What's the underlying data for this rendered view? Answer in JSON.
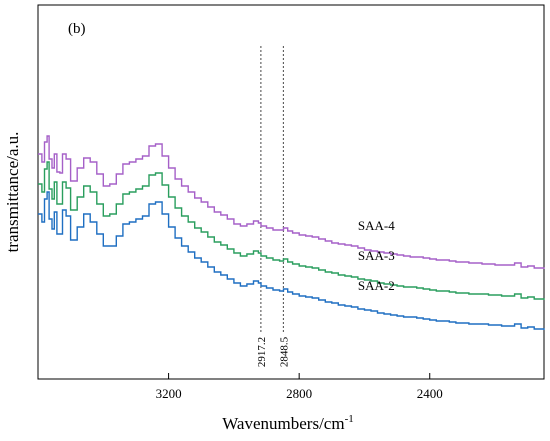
{
  "chart_data": {
    "type": "line",
    "panel_label": "(b)",
    "xlabel": "Wavenumbers/cm",
    "xlabel_exponent": "-1",
    "ylabel": "transmittance/a.u.",
    "xlim": [
      3600,
      2050
    ],
    "x_ticks": [
      3200,
      2800,
      2400
    ],
    "x_tick_labels": [
      "3200",
      "2800",
      "2400"
    ],
    "y_ticks": false,
    "grid": false,
    "legend": "labels placed above each curve",
    "annotations": [
      {
        "x": 2917.2,
        "label": "2917.2"
      },
      {
        "x": 2848.5,
        "label": "2848.5"
      }
    ],
    "series": [
      {
        "name": "SAA-4",
        "color": "#a560c8",
        "offset": 60,
        "points": [
          [
            3600,
            70
          ],
          [
            3588,
            62
          ],
          [
            3580,
            82
          ],
          [
            3572,
            88
          ],
          [
            3566,
            65
          ],
          [
            3557,
            56
          ],
          [
            3550,
            70
          ],
          [
            3542,
            52
          ],
          [
            3533,
            51
          ],
          [
            3525,
            70
          ],
          [
            3514,
            65
          ],
          [
            3500,
            43
          ],
          [
            3480,
            56
          ],
          [
            3460,
            66
          ],
          [
            3440,
            62
          ],
          [
            3420,
            50
          ],
          [
            3400,
            38
          ],
          [
            3380,
            40
          ],
          [
            3360,
            50
          ],
          [
            3340,
            60
          ],
          [
            3320,
            62
          ],
          [
            3300,
            65
          ],
          [
            3280,
            68
          ],
          [
            3260,
            78
          ],
          [
            3240,
            80
          ],
          [
            3220,
            68
          ],
          [
            3200,
            56
          ],
          [
            3180,
            45
          ],
          [
            3160,
            38
          ],
          [
            3140,
            32
          ],
          [
            3120,
            26
          ],
          [
            3100,
            22
          ],
          [
            3080,
            17
          ],
          [
            3060,
            12
          ],
          [
            3040,
            9
          ],
          [
            3020,
            5
          ],
          [
            3000,
            0
          ],
          [
            2980,
            -2
          ],
          [
            2960,
            0
          ],
          [
            2940,
            3
          ],
          [
            2925,
            1
          ],
          [
            2917,
            -2
          ],
          [
            2900,
            -4
          ],
          [
            2880,
            -6
          ],
          [
            2860,
            -6
          ],
          [
            2848,
            -4
          ],
          [
            2835,
            -7
          ],
          [
            2820,
            -9
          ],
          [
            2800,
            -11
          ],
          [
            2780,
            -12
          ],
          [
            2760,
            -13
          ],
          [
            2740,
            -15
          ],
          [
            2720,
            -17
          ],
          [
            2700,
            -19
          ],
          [
            2680,
            -20
          ],
          [
            2660,
            -21
          ],
          [
            2640,
            -22
          ],
          [
            2620,
            -24
          ],
          [
            2600,
            -26
          ],
          [
            2580,
            -27
          ],
          [
            2560,
            -28
          ],
          [
            2540,
            -29
          ],
          [
            2520,
            -30
          ],
          [
            2500,
            -31
          ],
          [
            2480,
            -32
          ],
          [
            2460,
            -33
          ],
          [
            2440,
            -33
          ],
          [
            2420,
            -34
          ],
          [
            2400,
            -35
          ],
          [
            2380,
            -36
          ],
          [
            2360,
            -36
          ],
          [
            2340,
            -37
          ],
          [
            2320,
            -38
          ],
          [
            2300,
            -38
          ],
          [
            2280,
            -39
          ],
          [
            2260,
            -39
          ],
          [
            2240,
            -40
          ],
          [
            2220,
            -40
          ],
          [
            2200,
            -41
          ],
          [
            2180,
            -41
          ],
          [
            2160,
            -41
          ],
          [
            2140,
            -39
          ],
          [
            2120,
            -43
          ],
          [
            2100,
            -42
          ],
          [
            2080,
            -44
          ],
          [
            2050,
            -45
          ]
        ]
      },
      {
        "name": "SAA-3",
        "color": "#2a9e5e",
        "offset": 30,
        "points": [
          [
            3600,
            70
          ],
          [
            3588,
            62
          ],
          [
            3580,
            85
          ],
          [
            3572,
            92
          ],
          [
            3566,
            65
          ],
          [
            3557,
            55
          ],
          [
            3550,
            72
          ],
          [
            3542,
            50
          ],
          [
            3533,
            50
          ],
          [
            3525,
            72
          ],
          [
            3514,
            66
          ],
          [
            3500,
            44
          ],
          [
            3480,
            57
          ],
          [
            3460,
            68
          ],
          [
            3440,
            62
          ],
          [
            3420,
            50
          ],
          [
            3400,
            38
          ],
          [
            3380,
            40
          ],
          [
            3360,
            50
          ],
          [
            3340,
            60
          ],
          [
            3320,
            62
          ],
          [
            3300,
            65
          ],
          [
            3280,
            68
          ],
          [
            3260,
            79
          ],
          [
            3240,
            81
          ],
          [
            3220,
            69
          ],
          [
            3200,
            57
          ],
          [
            3180,
            46
          ],
          [
            3160,
            38
          ],
          [
            3140,
            32
          ],
          [
            3120,
            26
          ],
          [
            3100,
            22
          ],
          [
            3080,
            17
          ],
          [
            3060,
            12
          ],
          [
            3040,
            9
          ],
          [
            3020,
            5
          ],
          [
            3000,
            1
          ],
          [
            2980,
            -2
          ],
          [
            2960,
            0
          ],
          [
            2940,
            3
          ],
          [
            2925,
            1
          ],
          [
            2917,
            -2
          ],
          [
            2900,
            -4
          ],
          [
            2880,
            -6
          ],
          [
            2860,
            -7
          ],
          [
            2848,
            -5
          ],
          [
            2835,
            -8
          ],
          [
            2820,
            -10
          ],
          [
            2800,
            -12
          ],
          [
            2780,
            -13
          ],
          [
            2760,
            -14
          ],
          [
            2740,
            -16
          ],
          [
            2720,
            -18
          ],
          [
            2700,
            -19
          ],
          [
            2680,
            -21
          ],
          [
            2660,
            -22
          ],
          [
            2640,
            -23
          ],
          [
            2620,
            -25
          ],
          [
            2600,
            -26
          ],
          [
            2580,
            -27
          ],
          [
            2560,
            -29
          ],
          [
            2540,
            -30
          ],
          [
            2520,
            -31
          ],
          [
            2500,
            -32
          ],
          [
            2480,
            -33
          ],
          [
            2460,
            -33
          ],
          [
            2440,
            -34
          ],
          [
            2420,
            -35
          ],
          [
            2400,
            -36
          ],
          [
            2380,
            -37
          ],
          [
            2360,
            -37
          ],
          [
            2340,
            -38
          ],
          [
            2320,
            -39
          ],
          [
            2300,
            -39
          ],
          [
            2280,
            -40
          ],
          [
            2260,
            -40
          ],
          [
            2240,
            -40
          ],
          [
            2220,
            -41
          ],
          [
            2200,
            -41
          ],
          [
            2180,
            -42
          ],
          [
            2160,
            -42
          ],
          [
            2140,
            -40
          ],
          [
            2120,
            -44
          ],
          [
            2100,
            -43
          ],
          [
            2080,
            -45
          ],
          [
            2050,
            -46
          ]
        ]
      },
      {
        "name": "SAA-2",
        "color": "#1f6fc2",
        "offset": 0,
        "points": [
          [
            3600,
            70
          ],
          [
            3588,
            62
          ],
          [
            3580,
            85
          ],
          [
            3572,
            92
          ],
          [
            3566,
            65
          ],
          [
            3557,
            55
          ],
          [
            3550,
            72
          ],
          [
            3542,
            50
          ],
          [
            3533,
            50
          ],
          [
            3525,
            74
          ],
          [
            3514,
            68
          ],
          [
            3500,
            44
          ],
          [
            3480,
            57
          ],
          [
            3460,
            70
          ],
          [
            3440,
            62
          ],
          [
            3420,
            50
          ],
          [
            3400,
            38
          ],
          [
            3380,
            38
          ],
          [
            3360,
            48
          ],
          [
            3340,
            60
          ],
          [
            3320,
            62
          ],
          [
            3300,
            65
          ],
          [
            3280,
            68
          ],
          [
            3260,
            80
          ],
          [
            3240,
            82
          ],
          [
            3220,
            70
          ],
          [
            3200,
            57
          ],
          [
            3180,
            46
          ],
          [
            3160,
            38
          ],
          [
            3140,
            32
          ],
          [
            3120,
            26
          ],
          [
            3100,
            22
          ],
          [
            3080,
            17
          ],
          [
            3060,
            12
          ],
          [
            3040,
            9
          ],
          [
            3020,
            5
          ],
          [
            3000,
            1
          ],
          [
            2980,
            -2
          ],
          [
            2960,
            0
          ],
          [
            2940,
            3
          ],
          [
            2925,
            1
          ],
          [
            2917,
            -2
          ],
          [
            2900,
            -4
          ],
          [
            2880,
            -6
          ],
          [
            2860,
            -7
          ],
          [
            2848,
            -5
          ],
          [
            2835,
            -8
          ],
          [
            2820,
            -10
          ],
          [
            2800,
            -12
          ],
          [
            2780,
            -13
          ],
          [
            2760,
            -14
          ],
          [
            2740,
            -16
          ],
          [
            2720,
            -18
          ],
          [
            2700,
            -19
          ],
          [
            2680,
            -21
          ],
          [
            2660,
            -22
          ],
          [
            2640,
            -23
          ],
          [
            2620,
            -25
          ],
          [
            2600,
            -26
          ],
          [
            2580,
            -27
          ],
          [
            2560,
            -29
          ],
          [
            2540,
            -30
          ],
          [
            2520,
            -31
          ],
          [
            2500,
            -32
          ],
          [
            2480,
            -33
          ],
          [
            2460,
            -33
          ],
          [
            2440,
            -34
          ],
          [
            2420,
            -35
          ],
          [
            2400,
            -36
          ],
          [
            2380,
            -37
          ],
          [
            2360,
            -37
          ],
          [
            2340,
            -38
          ],
          [
            2320,
            -39
          ],
          [
            2300,
            -39
          ],
          [
            2280,
            -40
          ],
          [
            2260,
            -40
          ],
          [
            2240,
            -40
          ],
          [
            2220,
            -41
          ],
          [
            2200,
            -41
          ],
          [
            2180,
            -42
          ],
          [
            2160,
            -42
          ],
          [
            2140,
            -40
          ],
          [
            2120,
            -44
          ],
          [
            2100,
            -43
          ],
          [
            2080,
            -45
          ],
          [
            2050,
            -46
          ]
        ]
      }
    ]
  }
}
